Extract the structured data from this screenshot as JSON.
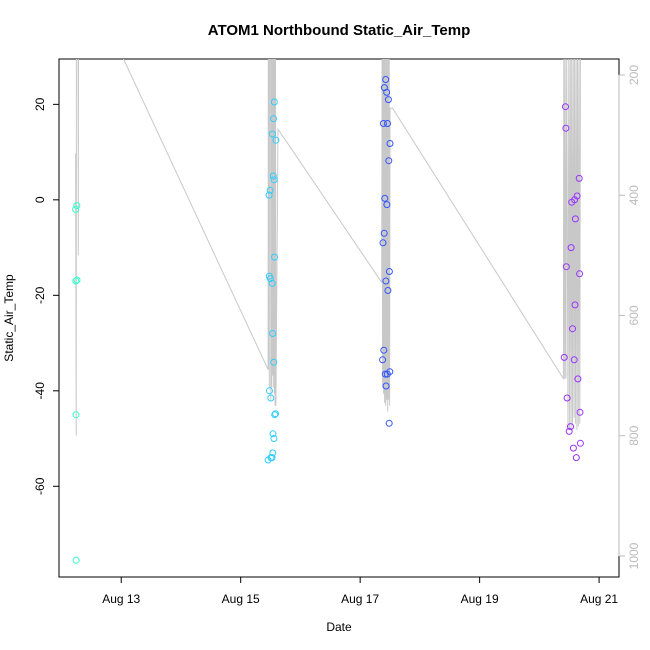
{
  "chart_data": {
    "type": "scatter",
    "title": "ATOM1 Northbound Static_Air_Temp",
    "xlabel": "Date",
    "ylabel": "Static_Air_Temp",
    "xlim": [
      "2016-08-11T23:00",
      "2016-08-21T08:00"
    ],
    "ylim": [
      -79,
      29.5
    ],
    "x_ticks": [
      {
        "date": "2016-08-13",
        "label": "Aug 13"
      },
      {
        "date": "2016-08-15",
        "label": "Aug 15"
      },
      {
        "date": "2016-08-17",
        "label": "Aug 17"
      },
      {
        "date": "2016-08-19",
        "label": "Aug 19"
      },
      {
        "date": "2016-08-21",
        "label": "Aug 21"
      }
    ],
    "y_ticks": [
      -60,
      -40,
      -20,
      0,
      20
    ],
    "y2_ticks": [
      200,
      400,
      600,
      800,
      1000
    ],
    "y2_reversed": true,
    "grid": false,
    "colors": {
      "flight1": "#33ffcc",
      "flight2": "#33ccff",
      "flight3": "#3355ff",
      "flight4": "#9933ff",
      "pressure_line": "#c8c8c8",
      "right_axis": "#bbbbbb"
    },
    "series": [
      {
        "color": "#33ffcc",
        "points": [
          [
            "2016-08-12T05:40",
            -2
          ],
          [
            "2016-08-12T05:45",
            -17
          ],
          [
            "2016-08-12T05:50",
            -45
          ],
          [
            "2016-08-12T05:55",
            -75.5
          ],
          [
            "2016-08-12T06:10",
            -1.2
          ],
          [
            "2016-08-12T06:15",
            -16.8
          ]
        ]
      },
      {
        "color": "#33ccff",
        "points": [
          [
            "2016-08-15T11:00",
            -54.5
          ],
          [
            "2016-08-15T11:25",
            1
          ],
          [
            "2016-08-15T11:30",
            -16
          ],
          [
            "2016-08-15T11:35",
            -40
          ],
          [
            "2016-08-15T11:50",
            2
          ],
          [
            "2016-08-15T11:55",
            -16.5
          ],
          [
            "2016-08-15T12:05",
            -41.5
          ],
          [
            "2016-08-15T12:10",
            -54
          ],
          [
            "2016-08-15T12:35",
            -54
          ],
          [
            "2016-08-15T12:40",
            -17.5
          ],
          [
            "2016-08-15T12:45",
            13.8
          ],
          [
            "2016-08-15T12:50",
            -28
          ],
          [
            "2016-08-15T12:55",
            -53
          ],
          [
            "2016-08-15T13:00",
            -49
          ],
          [
            "2016-08-15T13:05",
            5
          ],
          [
            "2016-08-15T13:10",
            17
          ],
          [
            "2016-08-15T13:15",
            -34
          ],
          [
            "2016-08-15T13:20",
            -50
          ],
          [
            "2016-08-15T13:25",
            4.2
          ],
          [
            "2016-08-15T13:30",
            20.5
          ],
          [
            "2016-08-15T13:35",
            -12
          ],
          [
            "2016-08-15T13:40",
            -45
          ],
          [
            "2016-08-15T14:00",
            -44.8
          ],
          [
            "2016-08-15T14:10",
            12.5
          ]
        ]
      },
      {
        "color": "#3355ff",
        "points": [
          [
            "2016-08-17T09:00",
            -33.5
          ],
          [
            "2016-08-17T09:10",
            -9
          ],
          [
            "2016-08-17T09:20",
            16
          ],
          [
            "2016-08-17T09:30",
            -31.5
          ],
          [
            "2016-08-17T09:40",
            -7
          ],
          [
            "2016-08-17T09:45",
            23.5
          ],
          [
            "2016-08-17T09:55",
            0.3
          ],
          [
            "2016-08-17T10:05",
            -36.5
          ],
          [
            "2016-08-17T10:15",
            25.2
          ],
          [
            "2016-08-17T10:20",
            -17
          ],
          [
            "2016-08-17T10:25",
            -39
          ],
          [
            "2016-08-17T10:40",
            22.5
          ],
          [
            "2016-08-17T10:45",
            -1
          ],
          [
            "2016-08-17T10:55",
            -36.5
          ],
          [
            "2016-08-17T11:00",
            16
          ],
          [
            "2016-08-17T11:10",
            -19
          ],
          [
            "2016-08-17T11:20",
            21
          ],
          [
            "2016-08-17T11:30",
            8.2
          ],
          [
            "2016-08-17T11:40",
            -46.8
          ],
          [
            "2016-08-17T11:45",
            -15
          ],
          [
            "2016-08-17T11:55",
            -36
          ],
          [
            "2016-08-17T12:00",
            11.8
          ]
        ]
      },
      {
        "color": "#9933ff",
        "points": [
          [
            "2016-08-20T10:00",
            -33
          ],
          [
            "2016-08-20T10:30",
            19.5
          ],
          [
            "2016-08-20T10:40",
            15
          ],
          [
            "2016-08-20T10:50",
            -14
          ],
          [
            "2016-08-20T11:10",
            -41.5
          ],
          [
            "2016-08-20T12:00",
            -48.5
          ],
          [
            "2016-08-20T12:30",
            -47.5
          ],
          [
            "2016-08-20T12:45",
            -10
          ],
          [
            "2016-08-20T13:00",
            -0.5
          ],
          [
            "2016-08-20T13:20",
            -27
          ],
          [
            "2016-08-20T13:40",
            -52
          ],
          [
            "2016-08-20T14:00",
            -33.5
          ],
          [
            "2016-08-20T14:10",
            0
          ],
          [
            "2016-08-20T14:20",
            -22
          ],
          [
            "2016-08-20T14:30",
            -4
          ],
          [
            "2016-08-20T14:50",
            -54
          ],
          [
            "2016-08-20T15:10",
            0.8
          ],
          [
            "2016-08-20T15:30",
            -37.5
          ],
          [
            "2016-08-20T16:00",
            4.5
          ],
          [
            "2016-08-20T16:10",
            -15.5
          ],
          [
            "2016-08-20T16:20",
            -44.5
          ],
          [
            "2016-08-20T16:30",
            -51
          ]
        ]
      }
    ],
    "pressure_line": [
      [
        "2016-08-12T05:40",
        330
      ],
      [
        "2016-08-12T05:55",
        800
      ],
      [
        "2016-08-12T06:00",
        165
      ],
      [
        "2016-08-12T06:40",
        165
      ],
      [
        "2016-08-12T06:45",
        500
      ],
      [
        "2016-08-12T06:50",
        165
      ],
      [
        "2016-08-13T00:00",
        165
      ],
      [
        "2016-08-15T11:00",
        690
      ],
      [
        "2016-08-15T11:05",
        165
      ],
      [
        "2016-08-15T11:10",
        690
      ],
      [
        "2016-08-15T11:15",
        345
      ],
      [
        "2016-08-15T11:20",
        165
      ],
      [
        "2016-08-15T11:30",
        720
      ],
      [
        "2016-08-15T11:35",
        165
      ],
      [
        "2016-08-15T12:00",
        165
      ],
      [
        "2016-08-15T12:05",
        740
      ],
      [
        "2016-08-15T12:15",
        165
      ],
      [
        "2016-08-15T12:30",
        720
      ],
      [
        "2016-08-15T12:40",
        165
      ],
      [
        "2016-08-15T12:55",
        700
      ],
      [
        "2016-08-15T13:00",
        165
      ],
      [
        "2016-08-15T13:15",
        720
      ],
      [
        "2016-08-15T13:20",
        165
      ],
      [
        "2016-08-15T13:30",
        730
      ],
      [
        "2016-08-15T13:40",
        165
      ],
      [
        "2016-08-15T13:50",
        750
      ],
      [
        "2016-08-15T14:00",
        165
      ],
      [
        "2016-08-15T14:10",
        750
      ],
      [
        "2016-08-15T15:00",
        290
      ],
      [
        "2016-08-17T08:40",
        545
      ],
      [
        "2016-08-17T08:50",
        165
      ],
      [
        "2016-08-17T09:00",
        720
      ],
      [
        "2016-08-17T09:10",
        165
      ],
      [
        "2016-08-17T09:25",
        730
      ],
      [
        "2016-08-17T09:35",
        165
      ],
      [
        "2016-08-17T09:50",
        745
      ],
      [
        "2016-08-17T10:00",
        165
      ],
      [
        "2016-08-17T10:15",
        750
      ],
      [
        "2016-08-17T10:25",
        165
      ],
      [
        "2016-08-17T10:40",
        740
      ],
      [
        "2016-08-17T10:50",
        165
      ],
      [
        "2016-08-17T11:05",
        760
      ],
      [
        "2016-08-17T11:15",
        165
      ],
      [
        "2016-08-17T11:30",
        740
      ],
      [
        "2016-08-17T11:40",
        165
      ],
      [
        "2016-08-17T11:50",
        750
      ],
      [
        "2016-08-17T12:00",
        255
      ],
      [
        "2016-08-17T13:00",
        255
      ],
      [
        "2016-08-20T09:40",
        705
      ],
      [
        "2016-08-20T09:50",
        165
      ],
      [
        "2016-08-20T10:10",
        705
      ],
      [
        "2016-08-20T10:20",
        165
      ],
      [
        "2016-08-20T10:40",
        705
      ],
      [
        "2016-08-20T11:00",
        165
      ],
      [
        "2016-08-20T11:30",
        790
      ],
      [
        "2016-08-20T11:50",
        165
      ],
      [
        "2016-08-20T12:10",
        790
      ],
      [
        "2016-08-20T12:25",
        165
      ],
      [
        "2016-08-20T12:45",
        790
      ],
      [
        "2016-08-20T13:00",
        165
      ],
      [
        "2016-08-20T13:20",
        780
      ],
      [
        "2016-08-20T13:35",
        165
      ],
      [
        "2016-08-20T13:55",
        770
      ],
      [
        "2016-08-20T14:10",
        165
      ],
      [
        "2016-08-20T14:30",
        780
      ],
      [
        "2016-08-20T14:45",
        165
      ],
      [
        "2016-08-20T15:05",
        790
      ],
      [
        "2016-08-20T15:20",
        165
      ],
      [
        "2016-08-20T15:40",
        785
      ],
      [
        "2016-08-20T15:55",
        165
      ],
      [
        "2016-08-20T16:15",
        780
      ],
      [
        "2016-08-20T16:30",
        165
      ]
    ]
  }
}
